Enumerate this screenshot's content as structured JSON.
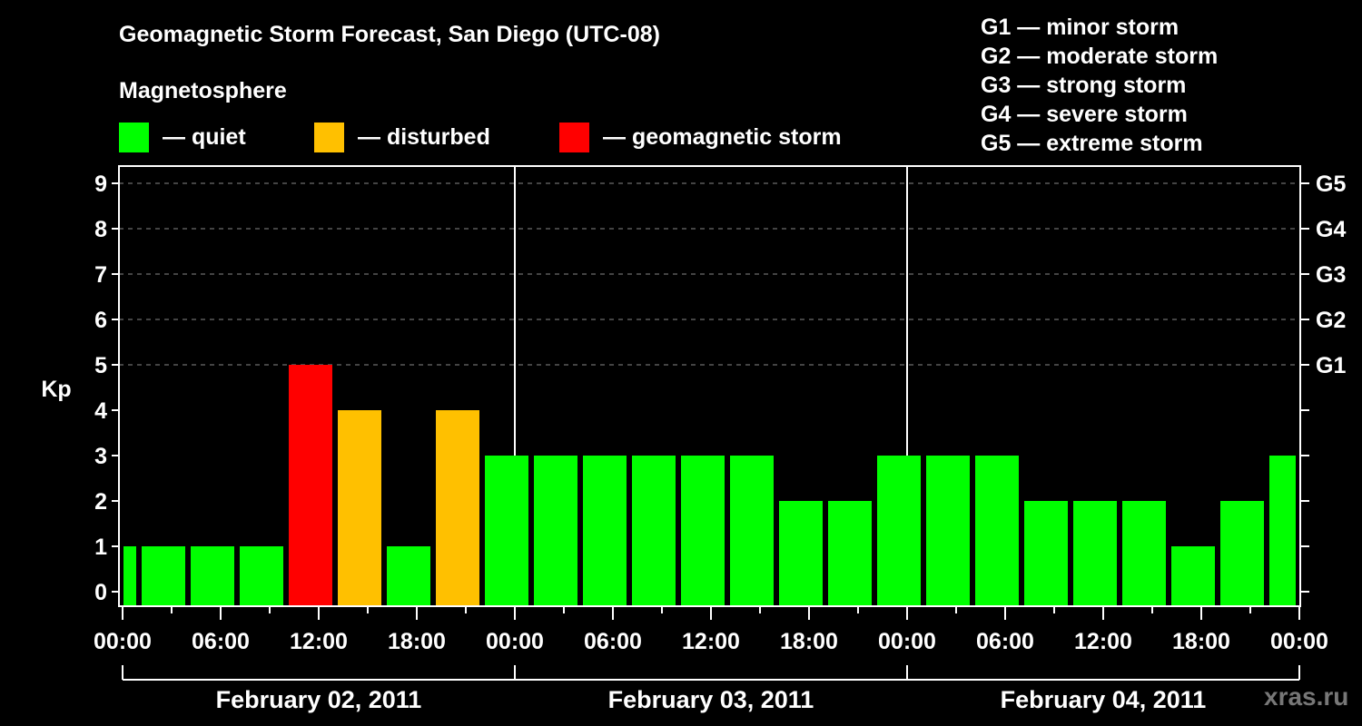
{
  "header": {
    "title": "Geomagnetic Storm Forecast, San Diego (UTC-08)",
    "subtitle": "Magnetosphere"
  },
  "legend": [
    {
      "label": "— quiet",
      "color": "#00ff00"
    },
    {
      "label": "— disturbed",
      "color": "#ffc000"
    },
    {
      "label": "— geomagnetic storm",
      "color": "#ff0000"
    }
  ],
  "g_scale": [
    "G1 — minor storm",
    "G2 — moderate storm",
    "G3 — strong storm",
    "G4 — severe storm",
    "G5 — extreme storm"
  ],
  "watermark": "xras.ru",
  "chart_data": {
    "type": "bar",
    "title": "Geomagnetic Storm Forecast, San Diego (UTC-08)",
    "xlabel": "",
    "ylabel": "Kp",
    "ylim": [
      0,
      9
    ],
    "y_ticks": [
      0,
      1,
      2,
      3,
      4,
      5,
      6,
      7,
      8,
      9
    ],
    "right_axis_labels": {
      "5": "G1",
      "6": "G2",
      "7": "G3",
      "8": "G4",
      "9": "G5"
    },
    "grid": "dashed horizontal at Kp 5-9",
    "x_tick_labels": [
      "00:00",
      "06:00",
      "12:00",
      "18:00",
      "00:00",
      "06:00",
      "12:00",
      "18:00",
      "00:00",
      "06:00",
      "12:00",
      "18:00",
      "00:00"
    ],
    "date_labels": [
      "February 02, 2011",
      "February 03, 2011",
      "February 04, 2011"
    ],
    "colors": {
      "quiet": "#00ff00",
      "disturbed": "#ffc000",
      "storm": "#ff0000"
    },
    "bars": [
      {
        "start_h": 0,
        "end_h": 1,
        "kp": 1,
        "level": "quiet"
      },
      {
        "start_h": 1,
        "end_h": 4,
        "kp": 1,
        "level": "quiet"
      },
      {
        "start_h": 4,
        "end_h": 7,
        "kp": 1,
        "level": "quiet"
      },
      {
        "start_h": 7,
        "end_h": 10,
        "kp": 1,
        "level": "quiet"
      },
      {
        "start_h": 10,
        "end_h": 13,
        "kp": 5,
        "level": "storm"
      },
      {
        "start_h": 13,
        "end_h": 16,
        "kp": 4,
        "level": "disturbed"
      },
      {
        "start_h": 16,
        "end_h": 19,
        "kp": 1,
        "level": "quiet"
      },
      {
        "start_h": 19,
        "end_h": 22,
        "kp": 4,
        "level": "disturbed"
      },
      {
        "start_h": 22,
        "end_h": 25,
        "kp": 3,
        "level": "quiet"
      },
      {
        "start_h": 25,
        "end_h": 28,
        "kp": 3,
        "level": "quiet"
      },
      {
        "start_h": 28,
        "end_h": 31,
        "kp": 3,
        "level": "quiet"
      },
      {
        "start_h": 31,
        "end_h": 34,
        "kp": 3,
        "level": "quiet"
      },
      {
        "start_h": 34,
        "end_h": 37,
        "kp": 3,
        "level": "quiet"
      },
      {
        "start_h": 37,
        "end_h": 40,
        "kp": 3,
        "level": "quiet"
      },
      {
        "start_h": 40,
        "end_h": 43,
        "kp": 2,
        "level": "quiet"
      },
      {
        "start_h": 43,
        "end_h": 46,
        "kp": 2,
        "level": "quiet"
      },
      {
        "start_h": 46,
        "end_h": 49,
        "kp": 3,
        "level": "quiet"
      },
      {
        "start_h": 49,
        "end_h": 52,
        "kp": 3,
        "level": "quiet"
      },
      {
        "start_h": 52,
        "end_h": 55,
        "kp": 3,
        "level": "quiet"
      },
      {
        "start_h": 55,
        "end_h": 58,
        "kp": 2,
        "level": "quiet"
      },
      {
        "start_h": 58,
        "end_h": 61,
        "kp": 2,
        "level": "quiet"
      },
      {
        "start_h": 61,
        "end_h": 64,
        "kp": 2,
        "level": "quiet"
      },
      {
        "start_h": 64,
        "end_h": 67,
        "kp": 1,
        "level": "quiet"
      },
      {
        "start_h": 67,
        "end_h": 70,
        "kp": 2,
        "level": "quiet"
      },
      {
        "start_h": 70,
        "end_h": 72,
        "kp": 3,
        "level": "quiet"
      }
    ]
  }
}
